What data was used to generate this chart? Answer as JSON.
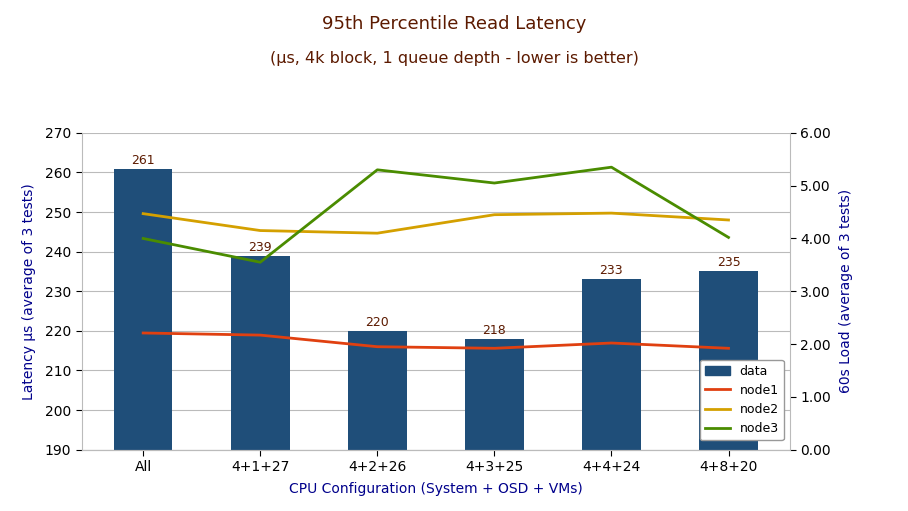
{
  "title_line1": "95th Percentile Read Latency",
  "title_line2": "(μs, 4k block, 1 queue depth - lower is better)",
  "xlabel": "CPU Configuration (System + OSD + VMs)",
  "ylabel_left": "Latency μs (average of 3 tests)",
  "ylabel_right": "60s Load (average of 3 tests)",
  "categories": [
    "All",
    "4+1+27",
    "4+2+26",
    "4+3+25",
    "4+4+24",
    "4+8+20"
  ],
  "bar_values": [
    261,
    239,
    220,
    218,
    233,
    235
  ],
  "bar_color": "#1f4e79",
  "bar_labels": [
    "261",
    "239",
    "220",
    "218",
    "233",
    "235"
  ],
  "node1_values": [
    2.21,
    2.17,
    1.95,
    1.92,
    2.02,
    1.92
  ],
  "node2_values": [
    4.47,
    4.15,
    4.1,
    4.45,
    4.48,
    4.35
  ],
  "node3_values": [
    4.0,
    3.55,
    5.3,
    5.05,
    5.35,
    4.02
  ],
  "node1_color": "#e04010",
  "node2_color": "#d4a000",
  "node3_color": "#4a8c00",
  "ylim_left": [
    190,
    270
  ],
  "ylim_right": [
    0.0,
    6.0
  ],
  "yticks_left": [
    190,
    200,
    210,
    220,
    230,
    240,
    250,
    260,
    270
  ],
  "yticks_right": [
    0.0,
    1.0,
    2.0,
    3.0,
    4.0,
    5.0,
    6.0
  ],
  "legend_labels": [
    "data",
    "node1",
    "node2",
    "node3"
  ],
  "title_color": "#5c1a00",
  "axis_label_color": "#00008b",
  "background_color": "#ffffff",
  "grid_color": "#bbbbbb",
  "bar_label_color": "#5c1a00"
}
